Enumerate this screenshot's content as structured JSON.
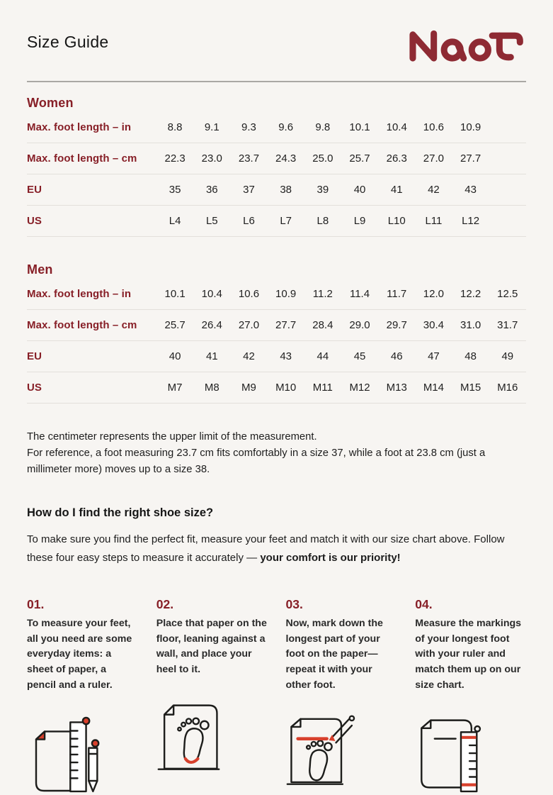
{
  "page": {
    "title": "Size Guide",
    "brand": "Naot"
  },
  "colors": {
    "background": "#f7f5f2",
    "maroon_text": "#871f27",
    "logo_maroon": "#8e2a33",
    "icon_red": "#d8402c",
    "icon_stroke": "#1d1d1b"
  },
  "women": {
    "heading": "Women",
    "rows": [
      {
        "label": "Max. foot length – in",
        "values": [
          "8.8",
          "9.1",
          "9.3",
          "9.6",
          "9.8",
          "10.1",
          "10.4",
          "10.6",
          "10.9"
        ]
      },
      {
        "label": "Max. foot length – cm",
        "values": [
          "22.3",
          "23.0",
          "23.7",
          "24.3",
          "25.0",
          "25.7",
          "26.3",
          "27.0",
          "27.7"
        ]
      },
      {
        "label": "EU",
        "values": [
          "35",
          "36",
          "37",
          "38",
          "39",
          "40",
          "41",
          "42",
          "43"
        ]
      },
      {
        "label": "US",
        "values": [
          "L4",
          "L5",
          "L6",
          "L7",
          "L8",
          "L9",
          "L10",
          "L11",
          "L12"
        ]
      }
    ]
  },
  "men": {
    "heading": "Men",
    "rows": [
      {
        "label": "Max. foot length – in",
        "values": [
          "10.1",
          "10.4",
          "10.6",
          "10.9",
          "11.2",
          "11.4",
          "11.7",
          "12.0",
          "12.2",
          "12.5"
        ]
      },
      {
        "label": "Max. foot length – cm",
        "values": [
          "25.7",
          "26.4",
          "27.0",
          "27.7",
          "28.4",
          "29.0",
          "29.7",
          "30.4",
          "31.0",
          "31.7"
        ]
      },
      {
        "label": "EU",
        "values": [
          "40",
          "41",
          "42",
          "43",
          "44",
          "45",
          "46",
          "47",
          "48",
          "49"
        ]
      },
      {
        "label": "US",
        "values": [
          "M7",
          "M8",
          "M9",
          "M10",
          "M11",
          "M12",
          "M13",
          "M14",
          "M15",
          "M16"
        ]
      }
    ]
  },
  "note": {
    "line1": "The centimeter represents the upper limit of the measurement.",
    "line2": "For reference, a foot measuring 23.7 cm fits comfortably in a size 37, while a foot at 23.8 cm (just a millimeter more) moves up to a size 38."
  },
  "how_to": {
    "heading": "How do I find the right shoe size?",
    "intro_regular": "To make sure you find the perfect fit, measure your feet and match it with our size chart above. Follow these four easy steps to measure it accurately — ",
    "intro_bold": "your comfort is our priority!"
  },
  "steps": [
    {
      "number": "01.",
      "text": "To measure your feet, all you need are some everyday items: a sheet of paper, a pencil and a ruler.",
      "icon": "paper-ruler-pencil-icon"
    },
    {
      "number": "02.",
      "text": "Place that paper on the floor, leaning against a wall, and place your heel to it.",
      "icon": "paper-footprint-heel-icon"
    },
    {
      "number": "03.",
      "text": "Now, mark down the longest part of your foot on the paper—repeat it with your other foot.",
      "icon": "paper-footprint-mark-icon"
    },
    {
      "number": "04.",
      "text": "Measure the markings of your longest foot with your ruler and match them up on our size chart.",
      "icon": "paper-ruler-marks-icon"
    }
  ]
}
